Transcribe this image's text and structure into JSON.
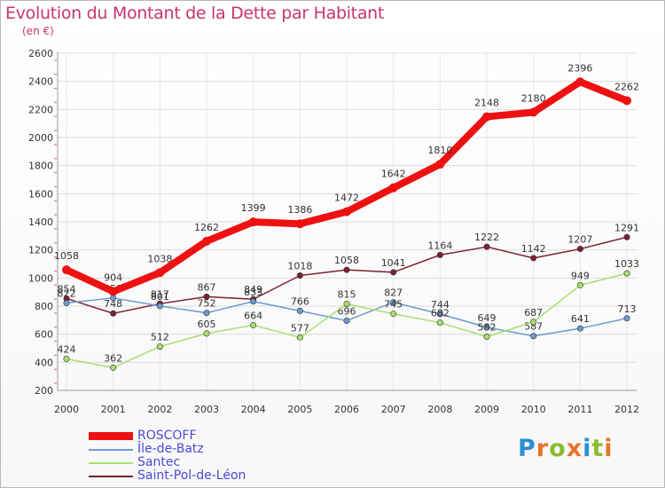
{
  "chart_data": {
    "type": "line",
    "title": "Evolution du Montant de la Dette par Habitant",
    "subtitle": "(en €)",
    "x": [
      "2000",
      "2001",
      "2002",
      "2003",
      "2004",
      "2005",
      "2006",
      "2007",
      "2008",
      "2009",
      "2010",
      "2011",
      "2012"
    ],
    "ylim": [
      200,
      2600
    ],
    "yticks": [
      "200",
      "400",
      "600",
      "800",
      "1000",
      "1200",
      "1400",
      "1600",
      "1800",
      "2000",
      "2200",
      "2400",
      "2600"
    ],
    "grid": true,
    "legend_position": "bottom-left",
    "series": [
      {
        "name": "ROSCOFF",
        "color": "#ee1111",
        "values": [
          1058,
          904,
          1038,
          1262,
          1399,
          1386,
          1472,
          1642,
          1810,
          2148,
          2180,
          2396,
          2262
        ]
      },
      {
        "name": "Île-de-Batz",
        "color": "#6b9bd1",
        "values": [
          822,
          858,
          801,
          752,
          833,
          766,
          696,
          827,
          744,
          649,
          587,
          641,
          713
        ]
      },
      {
        "name": "Santec",
        "color": "#a8e070",
        "values": [
          424,
          362,
          512,
          605,
          664,
          577,
          815,
          745,
          682,
          582,
          687,
          949,
          1033
        ]
      },
      {
        "name": "Saint-Pol-de-Léon",
        "color": "#7a2230",
        "values": [
          854,
          748,
          817,
          867,
          849,
          1018,
          1058,
          1041,
          1164,
          1222,
          1142,
          1207,
          1291
        ]
      }
    ]
  },
  "logo": {
    "letters": [
      "P",
      "r",
      "o",
      "x",
      "i",
      "t",
      "i"
    ],
    "colors": [
      "#2d8fd5",
      "#e8742a",
      "#8dbb2f",
      "#e8742a",
      "#2d8fd5",
      "#8dbb2f",
      "#e8742a"
    ]
  }
}
